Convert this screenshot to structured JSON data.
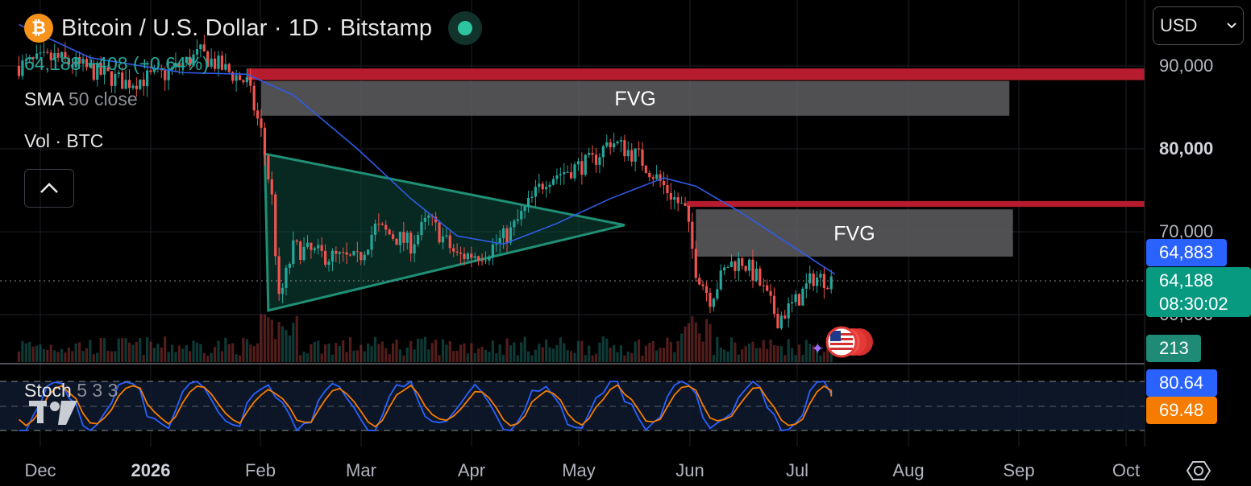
{
  "header": {
    "title": "Bitcoin / U.S. Dollar · 1D · Bitstamp",
    "coin_icon": "bitcoin-icon",
    "price": "64,188",
    "change": "+408 (+0.64%)",
    "sma_label": "SMA",
    "sma_params": "50 close",
    "vol_label": "Vol · BTC",
    "stoch_label": "Stoch",
    "stoch_params": "5 3 3"
  },
  "currency_select": {
    "value": "USD",
    "icon": "chevron-down-icon"
  },
  "colors": {
    "up": "#26a69a",
    "down": "#ef5350",
    "sma": "#2f5ce8",
    "stoch_k": "#2962ff",
    "stoch_d": "#f57c00",
    "triangle": "#1f8f76",
    "fvg_red": "#b71c2e",
    "fvg_gray": "#5e5e62"
  },
  "price_labels": {
    "sma": "64,883",
    "last": "64,188",
    "countdown": "08:30:02",
    "volume": "213",
    "stoch_k": "80.64",
    "stoch_d": "69.48"
  },
  "chart_data": {
    "type": "candlestick",
    "ylim": [
      55000,
      92000
    ],
    "y_ticks": [
      "90,000",
      "80,000",
      "70,000",
      "60,000"
    ],
    "x_ticks": [
      "Dec",
      "2026",
      "Feb",
      "Mar",
      "Apr",
      "May",
      "Jun",
      "Jul",
      "Aug",
      "Sep",
      "Oct"
    ],
    "annotations": [
      {
        "label": "FVG",
        "from": "Feb 1",
        "to": "Aug 30",
        "low": 84000,
        "high": 88200
      },
      {
        "label": "FVG",
        "from": "Jun 3",
        "to": "Aug 31",
        "low": 67000,
        "high": 72700
      },
      {
        "label": "",
        "type": "resistance-band",
        "low": 88300,
        "high": 89700
      },
      {
        "label": "",
        "type": "resistance-band",
        "low": 73000,
        "high": 73700
      }
    ],
    "triangle": {
      "apex": [
        "May 14",
        70800
      ],
      "top": [
        "Feb 2",
        79400
      ],
      "bottom": [
        "Feb 3",
        60500
      ]
    },
    "close_path": [
      [
        "Nov 25",
        90000
      ],
      [
        "Dec 5",
        91000
      ],
      [
        "Dec 15",
        89500
      ],
      [
        "Dec 25",
        88000
      ],
      [
        "Jan 5",
        89000
      ],
      [
        "Jan 15",
        91500
      ],
      [
        "Jan 22",
        89500
      ],
      [
        "Jan 28",
        88000
      ],
      [
        "Feb 1",
        82000
      ],
      [
        "Feb 4",
        74000
      ],
      [
        "Feb 6",
        61500
      ],
      [
        "Feb 10",
        68000
      ],
      [
        "Feb 20",
        67000
      ],
      [
        "Feb 28",
        66500
      ],
      [
        "Mar 5",
        70500
      ],
      [
        "Mar 15",
        68500
      ],
      [
        "Mar 20",
        71500
      ],
      [
        "Mar 28",
        67000
      ],
      [
        "Apr 5",
        67500
      ],
      [
        "Apr 12",
        70000
      ],
      [
        "Apr 22",
        76500
      ],
      [
        "May 5",
        78500
      ],
      [
        "May 10",
        81000
      ],
      [
        "May 18",
        79000
      ],
      [
        "May 25",
        75500
      ],
      [
        "May 31",
        72500
      ],
      [
        "Jun 3",
        65500
      ],
      [
        "Jun 7",
        62000
      ],
      [
        "Jun 12",
        66000
      ],
      [
        "Jun 16",
        66500
      ],
      [
        "Jun 20",
        64500
      ],
      [
        "Jun 26",
        59500
      ],
      [
        "Jul 1",
        61500
      ],
      [
        "Jul 6",
        64500
      ],
      [
        "Jul 11",
        64188
      ]
    ],
    "sma_path": [
      [
        "Nov 25",
        95000
      ],
      [
        "Dec 15",
        91000
      ],
      [
        "Jan 10",
        89200
      ],
      [
        "Jan 28",
        89000
      ],
      [
        "Feb 10",
        86500
      ],
      [
        "Feb 28",
        80000
      ],
      [
        "Mar 15",
        74000
      ],
      [
        "Mar 28",
        69500
      ],
      [
        "Apr 10",
        68500
      ],
      [
        "Apr 25",
        71000
      ],
      [
        "May 10",
        74000
      ],
      [
        "May 25",
        76500
      ],
      [
        "Jun 3",
        75500
      ],
      [
        "Jun 15",
        72500
      ],
      [
        "Jul 1",
        68000
      ],
      [
        "Jul 12",
        64883
      ]
    ],
    "stoch": {
      "k_last": 80.64,
      "d_last": 69.48,
      "bands": [
        80,
        50,
        20
      ]
    }
  }
}
